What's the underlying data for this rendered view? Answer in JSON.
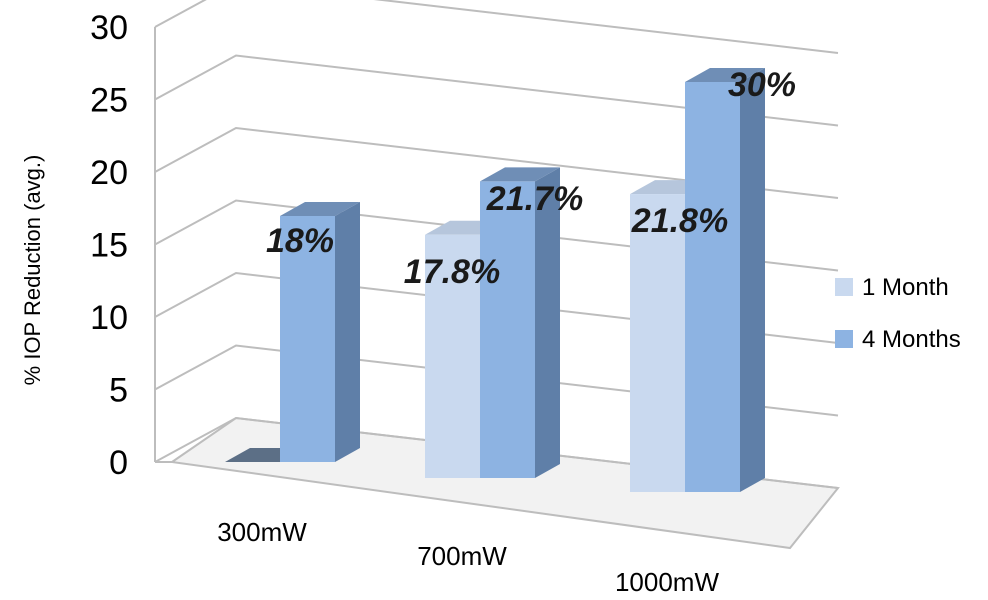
{
  "chart_data": {
    "type": "bar",
    "categories": [
      "300mW",
      "700mW",
      "1000mW"
    ],
    "series": [
      {
        "name": "1 Month",
        "values": [
          0,
          17.8,
          21.8
        ]
      },
      {
        "name": "4 Months",
        "values": [
          18,
          21.7,
          30
        ]
      }
    ],
    "data_labels": [
      {
        "series": "4 Months",
        "category": "300mW",
        "text": "18%"
      },
      {
        "series": "1 Month",
        "category": "700mW",
        "text": "17.8%"
      },
      {
        "series": "4 Months",
        "category": "700mW",
        "text": "21.7%"
      },
      {
        "series": "1 Month",
        "category": "1000mW",
        "text": "21.8%"
      },
      {
        "series": "4 Months",
        "category": "1000mW",
        "text": "30%"
      }
    ],
    "ylabel": "% IOP Reduction (avg.)",
    "xlabel": "",
    "ylim": [
      0,
      30
    ],
    "yticks": [
      "0",
      "5",
      "10",
      "15",
      "20",
      "25",
      "30"
    ],
    "grid": true,
    "legend_position": "right",
    "three_d": true,
    "colors": {
      "1 Month": "#c9d9ef",
      "4 Months": "#8db3e2"
    }
  }
}
